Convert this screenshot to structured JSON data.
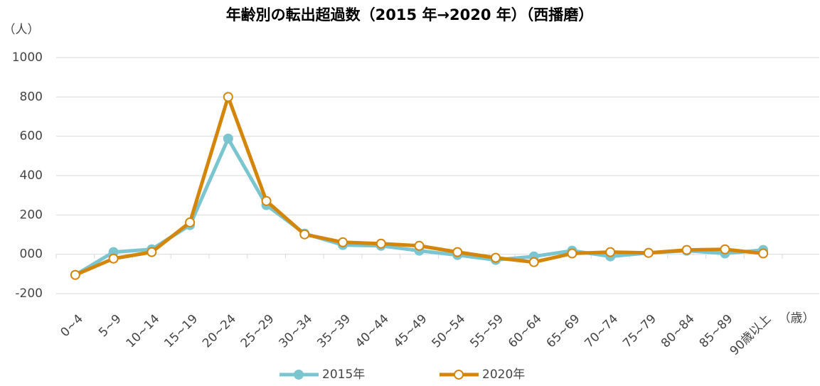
{
  "chart_data": {
    "type": "line",
    "title": "年齢別の転出超過数（2015 年→2020 年）（西播磨）",
    "y_label": "（人）",
    "x_label": "（歳）",
    "categories": [
      "0~4",
      "5~9",
      "10~14",
      "15~19",
      "20~24",
      "25~29",
      "30~34",
      "35~39",
      "40~44",
      "45~49",
      "50~54",
      "55~59",
      "60~64",
      "65~69",
      "70~74",
      "75~79",
      "80~84",
      "85~89",
      "90歳以上"
    ],
    "series": [
      {
        "name": "2015年",
        "color": "#7ac5cf",
        "marker_fill": "#7ac5cf",
        "values": [
          -105,
          11,
          25,
          148,
          588,
          250,
          105,
          47,
          43,
          18,
          -4,
          -29,
          -11,
          18,
          -11,
          7,
          18,
          4,
          22
        ]
      },
      {
        "name": "2020年",
        "color": "#d4860b",
        "marker_fill": "#ffffff",
        "values": [
          -105,
          -22,
          11,
          162,
          800,
          271,
          101,
          61,
          54,
          43,
          11,
          -18,
          -40,
          4,
          11,
          7,
          22,
          25,
          4
        ]
      }
    ],
    "ylim": [
      -200,
      1000
    ],
    "yticks": [
      -200,
      {
        "value": 0,
        "label": "000"
      },
      200,
      400,
      600,
      800,
      1000
    ],
    "grid": true,
    "legend": "bottom"
  }
}
